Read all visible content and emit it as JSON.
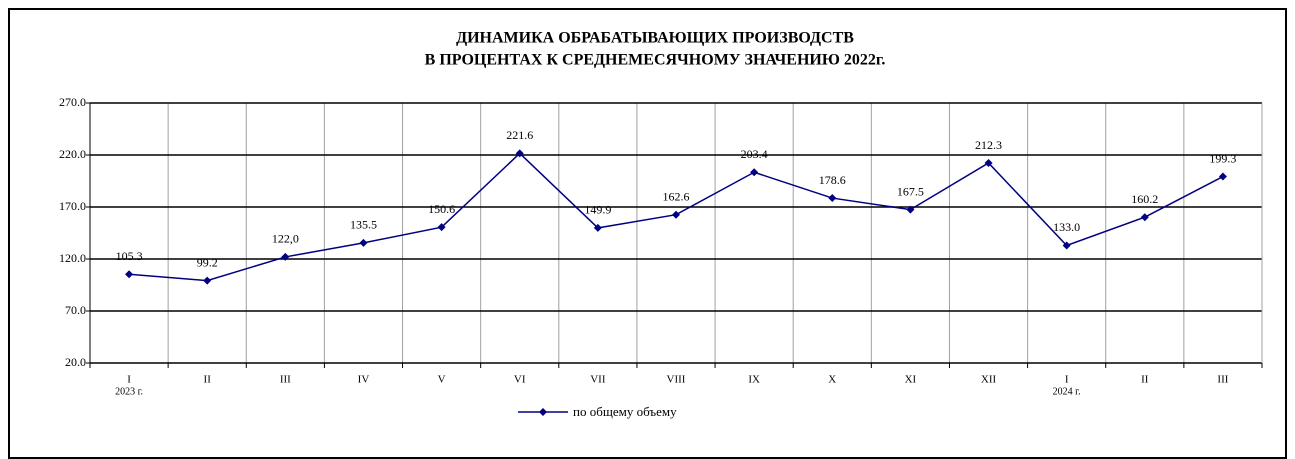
{
  "chart_data": {
    "type": "line",
    "title": [
      "ДИНАМИКА ОБРАБАТЫВАЮЩИХ ПРОИЗВОДСТВ",
      "В ПРОЦЕНТАХ К СРЕДНЕМЕСЯЧНОМУ ЗНАЧЕНИЮ 2022г."
    ],
    "categories": [
      "I",
      "II",
      "III",
      "IV",
      "V",
      "VI",
      "VII",
      "VIII",
      "IX",
      "X",
      "XI",
      "XII",
      "I",
      "II",
      "III"
    ],
    "category_sublabels": [
      "2023 г.",
      null,
      null,
      null,
      null,
      null,
      null,
      null,
      null,
      null,
      null,
      null,
      "2024 г.",
      null,
      null
    ],
    "series": [
      {
        "name": "по общему объему",
        "color": "#000080",
        "values": [
          105.3,
          99.2,
          122.0,
          135.5,
          150.6,
          221.6,
          149.9,
          162.6,
          203.4,
          178.6,
          167.5,
          212.3,
          133.0,
          160.2,
          199.3
        ],
        "value_labels": [
          "105.3",
          "99.2",
          "122,0",
          "135.5",
          "150.6",
          "221.6",
          "149.9",
          "162.6",
          "203.4",
          "178.6",
          "167.5",
          "212.3",
          "133.0",
          "160.2",
          "199.3"
        ]
      }
    ],
    "ylim": [
      20,
      270
    ],
    "yticks": [
      {
        "value": 20,
        "label": "20.0"
      },
      {
        "value": 70,
        "label": "70.0"
      },
      {
        "value": 120,
        "label": "120.0"
      },
      {
        "value": 170,
        "label": "170.0"
      },
      {
        "value": 220,
        "label": "220.0"
      },
      {
        "value": 270,
        "label": "270.0"
      }
    ],
    "grid": true,
    "legend": "bottom"
  }
}
